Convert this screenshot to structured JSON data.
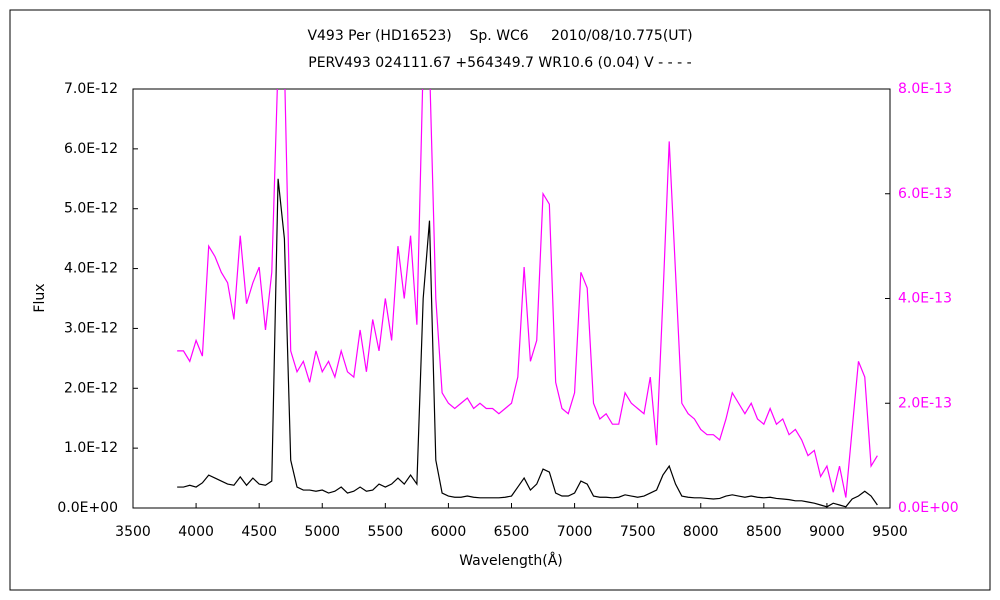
{
  "chart_data": {
    "type": "line",
    "title": "V493 Per (HD16523)    Sp. WC6     2010/08/10.775(UT)",
    "subtitle": "PERV493 024111.67 +564349.7 WR10.6 (0.04) V - - - -",
    "xlabel": "Wavelength(Å)",
    "ylabel": "Flux",
    "x": [
      3850,
      3900,
      3950,
      4000,
      4050,
      4100,
      4150,
      4200,
      4250,
      4300,
      4350,
      4400,
      4450,
      4500,
      4550,
      4600,
      4650,
      4700,
      4750,
      4800,
      4850,
      4900,
      4950,
      5000,
      5050,
      5100,
      5150,
      5200,
      5250,
      5300,
      5350,
      5400,
      5450,
      5500,
      5550,
      5600,
      5650,
      5700,
      5750,
      5800,
      5850,
      5900,
      5950,
      6000,
      6050,
      6100,
      6150,
      6200,
      6250,
      6300,
      6350,
      6400,
      6450,
      6500,
      6550,
      6600,
      6650,
      6700,
      6750,
      6800,
      6850,
      6900,
      6950,
      7000,
      7050,
      7100,
      7150,
      7200,
      7250,
      7300,
      7350,
      7400,
      7450,
      7500,
      7550,
      7600,
      7650,
      7700,
      7750,
      7800,
      7850,
      7900,
      7950,
      8000,
      8050,
      8100,
      8150,
      8200,
      8250,
      8300,
      8350,
      8400,
      8450,
      8500,
      8550,
      8600,
      8650,
      8700,
      8750,
      8800,
      8850,
      8900,
      8950,
      9000,
      9050,
      9100,
      9150,
      9200,
      9250,
      9300,
      9350,
      9400
    ],
    "series": [
      {
        "color": "#000000",
        "axis": "y",
        "values": [
          3.5e-13,
          3.5e-13,
          3.8e-13,
          3.5e-13,
          4.2e-13,
          5.5e-13,
          5e-13,
          4.5e-13,
          4e-13,
          3.8e-13,
          5.2e-13,
          3.8e-13,
          5e-13,
          4e-13,
          3.8e-13,
          4.5e-13,
          5.5e-12,
          4.5e-12,
          8e-13,
          3.5e-13,
          3e-13,
          3e-13,
          2.8e-13,
          3e-13,
          2.5e-13,
          2.8e-13,
          3.5e-13,
          2.5e-13,
          2.8e-13,
          3.5e-13,
          2.8e-13,
          3e-13,
          4e-13,
          3.5e-13,
          4e-13,
          5e-13,
          4e-13,
          5.5e-13,
          4e-13,
          3.5e-12,
          4.8e-12,
          8e-13,
          2.5e-13,
          2e-13,
          1.8e-13,
          1.8e-13,
          2e-13,
          1.8e-13,
          1.7e-13,
          1.7e-13,
          1.7e-13,
          1.7e-13,
          1.8e-13,
          2e-13,
          3.5e-13,
          5e-13,
          3e-13,
          4e-13,
          6.5e-13,
          6e-13,
          2.5e-13,
          2e-13,
          2e-13,
          2.5e-13,
          4.5e-13,
          4e-13,
          2e-13,
          1.8e-13,
          1.8e-13,
          1.7e-13,
          1.8e-13,
          2.2e-13,
          2e-13,
          1.8e-13,
          2e-13,
          2.5e-13,
          3e-13,
          5.5e-13,
          7e-13,
          4e-13,
          2e-13,
          1.8e-13,
          1.7e-13,
          1.7e-13,
          1.6e-13,
          1.5e-13,
          1.6e-13,
          2e-13,
          2.2e-13,
          2e-13,
          1.8e-13,
          2e-13,
          1.8e-13,
          1.7e-13,
          1.8e-13,
          1.6e-13,
          1.5e-13,
          1.4e-13,
          1.2e-13,
          1.2e-13,
          1e-13,
          8e-14,
          5e-14,
          2e-14,
          8e-14,
          5e-14,
          2e-14,
          1.5e-13,
          2e-13,
          2.8e-13,
          2e-13,
          5e-14
        ]
      },
      {
        "color": "#ff00ff",
        "axis": "y2",
        "values": [
          3e-13,
          3e-13,
          2.8e-13,
          3.2e-13,
          2.9e-13,
          5e-13,
          4.8e-13,
          4.5e-13,
          4.3e-13,
          3.6e-13,
          5.2e-13,
          3.9e-13,
          4.3e-13,
          4.6e-13,
          3.4e-13,
          4.5e-13,
          8.5e-13,
          8.5e-13,
          3e-13,
          2.6e-13,
          2.8e-13,
          2.4e-13,
          3e-13,
          2.6e-13,
          2.8e-13,
          2.5e-13,
          3e-13,
          2.6e-13,
          2.5e-13,
          3.4e-13,
          2.6e-13,
          3.6e-13,
          3e-13,
          4e-13,
          3.2e-13,
          5e-13,
          4e-13,
          5.2e-13,
          3.5e-13,
          8.5e-13,
          8.5e-13,
          4e-13,
          2.2e-13,
          2e-13,
          1.9e-13,
          2e-13,
          2.1e-13,
          1.9e-13,
          2e-13,
          1.9e-13,
          1.9e-13,
          1.8e-13,
          1.9e-13,
          2e-13,
          2.5e-13,
          4.6e-13,
          2.8e-13,
          3.2e-13,
          6e-13,
          5.8e-13,
          2.4e-13,
          1.9e-13,
          1.8e-13,
          2.2e-13,
          4.5e-13,
          4.2e-13,
          2e-13,
          1.7e-13,
          1.8e-13,
          1.6e-13,
          1.6e-13,
          2.2e-13,
          2e-13,
          1.9e-13,
          1.8e-13,
          2.5e-13,
          1.2e-13,
          4e-13,
          7e-13,
          4.5e-13,
          2e-13,
          1.8e-13,
          1.7e-13,
          1.5e-13,
          1.4e-13,
          1.4e-13,
          1.3e-13,
          1.7e-13,
          2.2e-13,
          2e-13,
          1.8e-13,
          2e-13,
          1.7e-13,
          1.6e-13,
          1.9e-13,
          1.6e-13,
          1.7e-13,
          1.4e-13,
          1.5e-13,
          1.3e-13,
          1e-13,
          1.1e-13,
          6e-14,
          8e-14,
          3e-14,
          8e-14,
          2e-14,
          1.5e-13,
          2.8e-13,
          2.5e-13,
          8e-14,
          1e-13
        ]
      }
    ],
    "xlim": [
      3500,
      9500
    ],
    "xticks": [
      3500,
      4000,
      4500,
      5000,
      5500,
      6000,
      6500,
      7000,
      7500,
      8000,
      8500,
      9000,
      9500
    ],
    "ylim": [
      0,
      7e-12
    ],
    "yticks": [
      {
        "value": 0,
        "label": "0.0E+00"
      },
      {
        "value": 1e-12,
        "label": "1.0E-12"
      },
      {
        "value": 2e-12,
        "label": "2.0E-12"
      },
      {
        "value": 3e-12,
        "label": "3.0E-12"
      },
      {
        "value": 4e-12,
        "label": "4.0E-12"
      },
      {
        "value": 5e-12,
        "label": "5.0E-12"
      },
      {
        "value": 6e-12,
        "label": "6.0E-12"
      },
      {
        "value": 7e-12,
        "label": "7.0E-12"
      }
    ],
    "y2lim": [
      0,
      8e-13
    ],
    "y2ticks": [
      {
        "value": 0,
        "label": "0.0E+00"
      },
      {
        "value": 2e-13,
        "label": "2.0E-13"
      },
      {
        "value": 4e-13,
        "label": "4.0E-13"
      },
      {
        "value": 6e-13,
        "label": "6.0E-13"
      },
      {
        "value": 8e-13,
        "label": "8.0E-13"
      }
    ],
    "y2color": "#ff00ff",
    "grid": false
  }
}
